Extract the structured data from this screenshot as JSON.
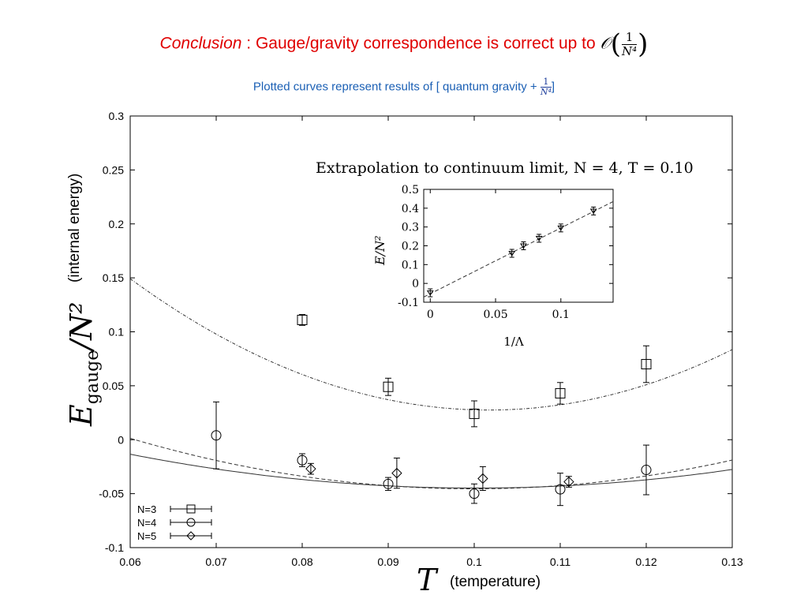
{
  "header": {
    "conclusion_word": "Conclusion",
    "conclusion_rest": " : Gauge/gravity correspondence is correct up to ",
    "order_symbol": "𝒪",
    "order_num": "1",
    "order_den": "N⁴",
    "order_open": "(",
    "order_close": ")"
  },
  "subheader": {
    "text": "Plotted curves represent results of [ quantum gravity + ",
    "frac_num": "1",
    "frac_den": "N⁴",
    "close": "]"
  },
  "labels": {
    "y_axis_note": "(internal energy)",
    "x_axis_note": "(temperature)"
  },
  "chart_data": [
    {
      "type": "scatter",
      "title": "",
      "xlabel": "T",
      "ylabel": "E_gauge/N²",
      "xlim": [
        0.06,
        0.13
      ],
      "ylim": [
        -0.1,
        0.3
      ],
      "xticks": [
        "0.06",
        "0.07",
        "0.08",
        "0.09",
        "0.1",
        "0.11",
        "0.12",
        "0.13"
      ],
      "yticks": [
        "-0.1",
        "-0.05",
        "0",
        "0.05",
        "0.1",
        "0.15",
        "0.2",
        "0.25",
        "0.3"
      ],
      "legend_position": "bottom-left",
      "series": [
        {
          "name": "N=3",
          "marker": "square",
          "points": [
            {
              "x": 0.08,
              "y": 0.111,
              "err": 0.005
            },
            {
              "x": 0.09,
              "y": 0.049,
              "err": 0.008
            },
            {
              "x": 0.1,
              "y": 0.024,
              "err": 0.012
            },
            {
              "x": 0.11,
              "y": 0.043,
              "err": 0.01
            },
            {
              "x": 0.12,
              "y": 0.07,
              "err": 0.017
            }
          ],
          "fit": {
            "style": "dash-dot",
            "a": 70,
            "b": 0.1017,
            "c": 0.0275
          }
        },
        {
          "name": "N=4",
          "marker": "circle",
          "points": [
            {
              "x": 0.07,
              "y": 0.004,
              "err": 0.031
            },
            {
              "x": 0.08,
              "y": -0.019,
              "err": 0.006
            },
            {
              "x": 0.09,
              "y": -0.041,
              "err": 0.006
            },
            {
              "x": 0.1,
              "y": -0.05,
              "err": 0.009
            },
            {
              "x": 0.11,
              "y": -0.046,
              "err": 0.015
            },
            {
              "x": 0.12,
              "y": -0.028,
              "err": 0.023
            }
          ],
          "fit": {
            "style": "dashed",
            "a": 29.4,
            "b": 0.0999,
            "c": -0.0455
          }
        },
        {
          "name": "N=5",
          "marker": "diamond",
          "points": [
            {
              "x": 0.081,
              "y": -0.027,
              "err": 0.005
            },
            {
              "x": 0.091,
              "y": -0.031,
              "err": 0.014
            },
            {
              "x": 0.101,
              "y": -0.036,
              "err": 0.011
            },
            {
              "x": 0.111,
              "y": -0.039,
              "err": 0.005
            }
          ]
        }
      ],
      "extra_curves": [
        {
          "style": "solid",
          "a": 19.4,
          "b": 0.1002,
          "c": -0.0448
        }
      ]
    },
    {
      "type": "scatter",
      "title": "Extrapolation to continuum limit, N = 4, T = 0.10",
      "xlabel": "1/Λ",
      "ylabel": "E/N²",
      "xlim": [
        -0.005,
        0.14
      ],
      "ylim": [
        -0.1,
        0.5
      ],
      "xticks": [
        "0",
        "0.05",
        "0.1"
      ],
      "yticks": [
        "-0.1",
        "0",
        "0.1",
        "0.2",
        "0.3",
        "0.4",
        "0.5"
      ],
      "series": [
        {
          "name": "",
          "marker": "triangle-down",
          "points": [
            {
              "x": 0.0,
              "y": -0.05
            },
            {
              "x": 0.0625,
              "y": 0.16
            },
            {
              "x": 0.0714,
              "y": 0.2
            },
            {
              "x": 0.0833,
              "y": 0.24
            },
            {
              "x": 0.1,
              "y": 0.295
            },
            {
              "x": 0.125,
              "y": 0.385
            }
          ],
          "fit": {
            "style": "dashed",
            "slope": 3.5,
            "intercept": -0.055
          }
        }
      ]
    }
  ]
}
